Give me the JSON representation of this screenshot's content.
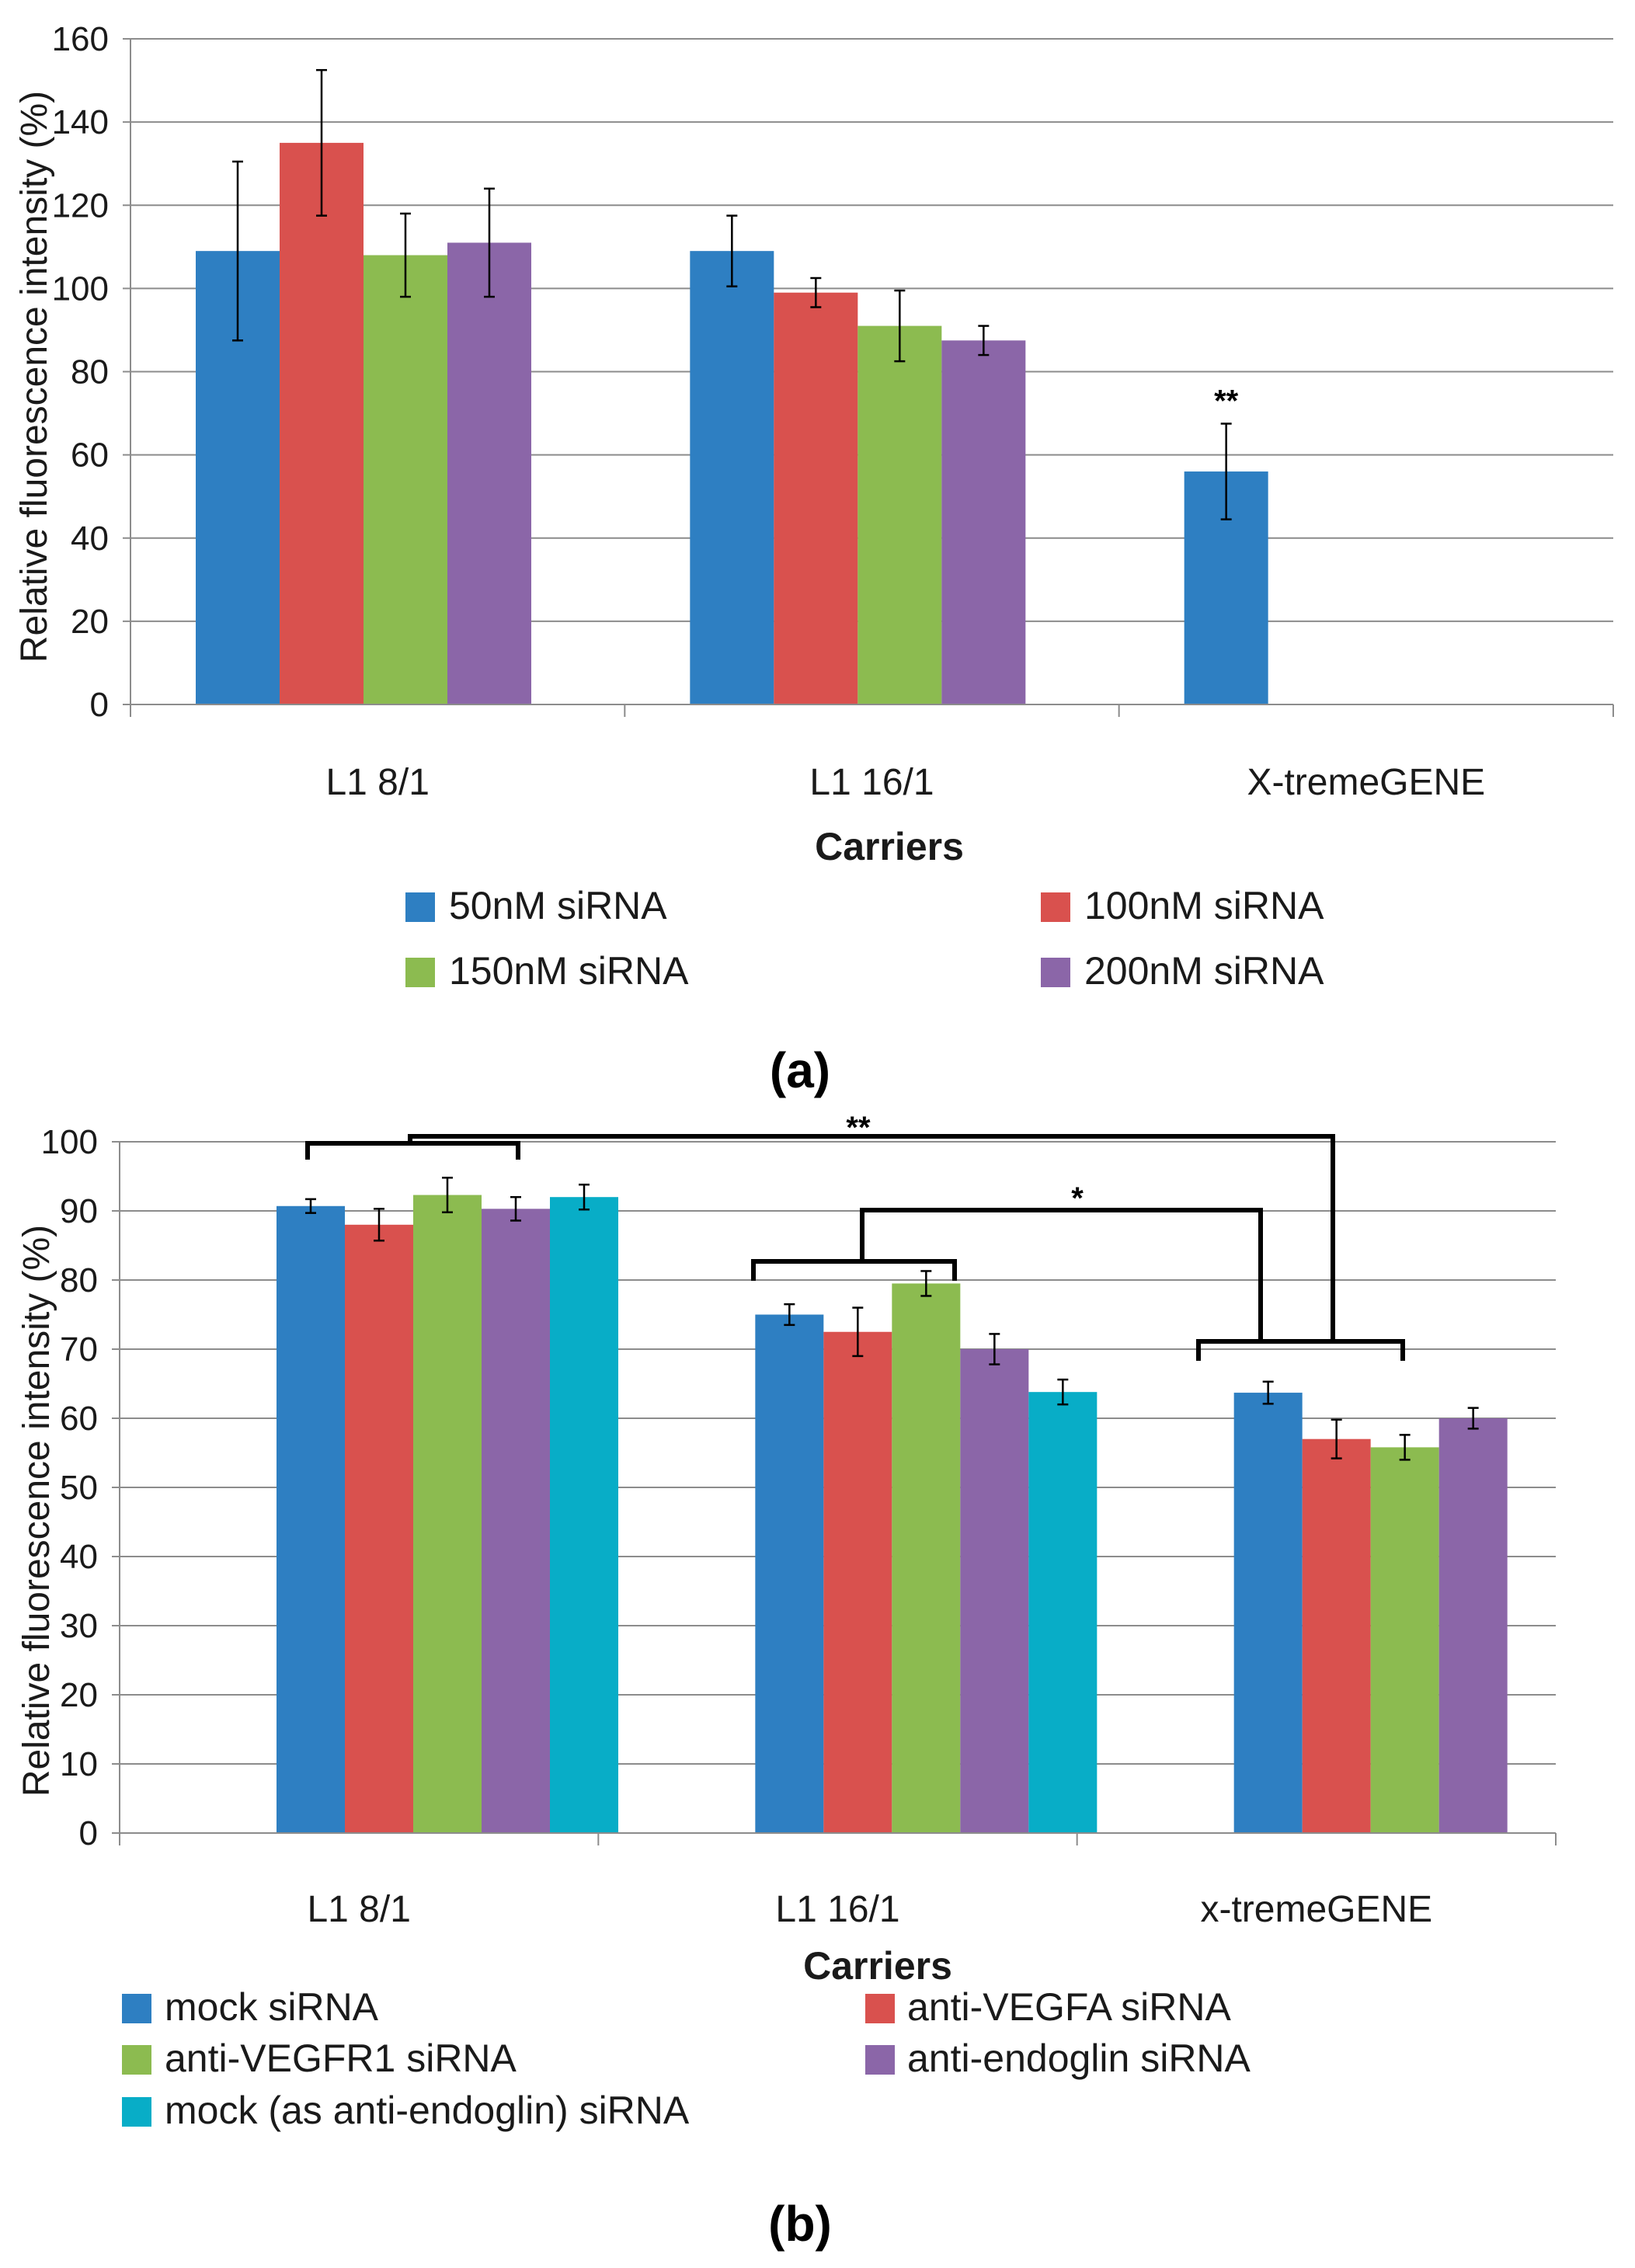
{
  "chart_data": [
    {
      "type": "bar",
      "panel_label": "(a)",
      "categories": [
        "L1 8/1",
        "L1 16/1",
        "X-tremeGENE"
      ],
      "xlabel": "Carriers",
      "ylabel": "Relative fluorescence intensity (%)",
      "ylim": [
        0,
        160
      ],
      "yticks": [
        "0",
        "20",
        "40",
        "60",
        "80",
        "100",
        "120",
        "140",
        "160"
      ],
      "grid": true,
      "legend_position": "bottom",
      "colors": [
        "#2e7fc2",
        "#d9514e",
        "#8cbb50",
        "#8b66a8"
      ],
      "series": [
        {
          "name": "50nM siRNA",
          "values": [
            109,
            109,
            56
          ],
          "errors": [
            21.5,
            8.5,
            11.5
          ]
        },
        {
          "name": "100nM siRNA",
          "values": [
            135,
            99,
            null
          ],
          "errors": [
            17.5,
            3.5,
            null
          ]
        },
        {
          "name": "150nM siRNA",
          "values": [
            108,
            91,
            null
          ],
          "errors": [
            10,
            8.5,
            null
          ]
        },
        {
          "name": "200nM siRNA",
          "values": [
            111,
            87.5,
            null
          ],
          "errors": [
            13,
            3.5,
            null
          ]
        }
      ],
      "annotations": [
        {
          "text": "**",
          "category": 2,
          "series": 0
        }
      ]
    },
    {
      "type": "bar",
      "panel_label": "(b)",
      "categories": [
        "L1 8/1",
        "L1 16/1",
        "x-tremeGENE"
      ],
      "xlabel": "Carriers",
      "ylabel": "Relative fluorescence intensity (%)",
      "ylim": [
        0,
        100
      ],
      "yticks": [
        "0",
        "10",
        "20",
        "30",
        "40",
        "50",
        "60",
        "70",
        "80",
        "90",
        "100"
      ],
      "grid": true,
      "legend_position": "bottom",
      "colors": [
        "#2e7fc2",
        "#d9514e",
        "#8cbb50",
        "#8b66a8",
        "#08adc7"
      ],
      "series": [
        {
          "name": "mock siRNA",
          "values": [
            90.7,
            75,
            63.7
          ],
          "errors": [
            1,
            1.5,
            1.6
          ]
        },
        {
          "name": "anti-VEGFA siRNA",
          "values": [
            88,
            72.5,
            57
          ],
          "errors": [
            2.3,
            3.5,
            2.8
          ]
        },
        {
          "name": "anti-VEGFR1 siRNA",
          "values": [
            92.3,
            79.5,
            55.8
          ],
          "errors": [
            2.5,
            1.8,
            1.8
          ]
        },
        {
          "name": "anti-endoglin siRNA",
          "values": [
            90.3,
            70,
            60
          ],
          "errors": [
            1.7,
            2.2,
            1.5
          ]
        },
        {
          "name": "mock (as anti-endoglin) siRNA",
          "values": [
            92,
            63.8,
            null
          ],
          "errors": [
            1.8,
            1.8,
            null
          ]
        }
      ],
      "significance": [
        {
          "text": "**",
          "between": [
            "L1 8/1",
            "x-tremeGENE"
          ]
        },
        {
          "text": "*",
          "between": [
            "L1 16/1",
            "x-tremeGENE"
          ]
        }
      ]
    }
  ]
}
